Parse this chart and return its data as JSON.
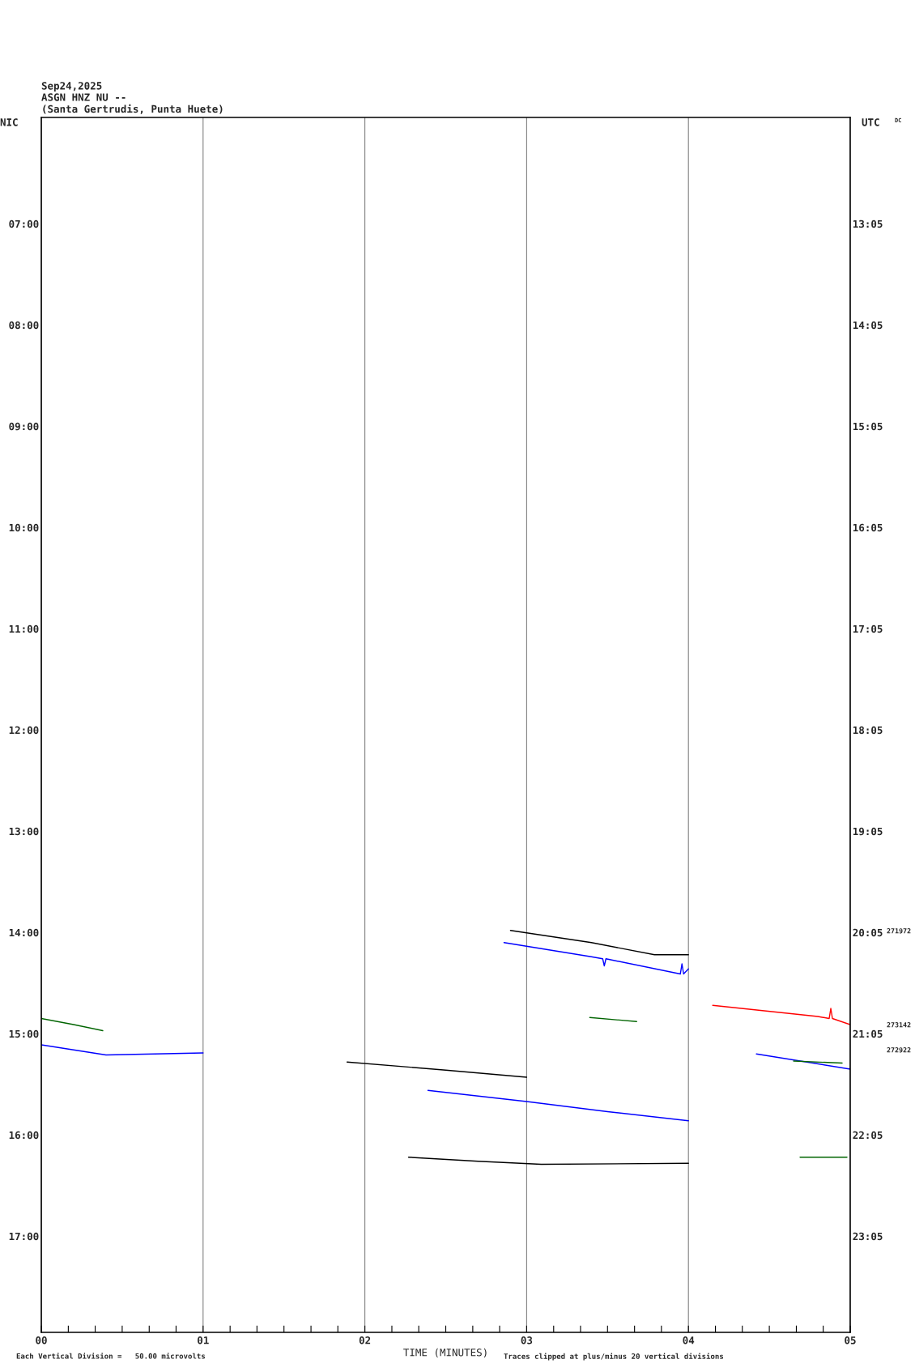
{
  "chart_data": {
    "type": "line",
    "title": "Sep24,2025",
    "subtitle": "ASGN HNZ NU --\n(Santa Gertrudis, Punta Huete)",
    "xlabel": "TIME (MINUTES)",
    "ylabel": "NIC",
    "y2label": "UTC",
    "xlim": [
      0,
      5
    ],
    "ylim": [
      17.95,
      5.95
    ],
    "y2lim": [
      24.033,
      12.033
    ],
    "xticks": [
      {
        "value": 0,
        "label": "00"
      },
      {
        "value": 0.167,
        "label": null
      },
      {
        "value": 0.333,
        "label": null
      },
      {
        "value": 0.5,
        "label": null
      },
      {
        "value": 0.667,
        "label": null
      },
      {
        "value": 0.833,
        "label": null
      },
      {
        "value": 1,
        "label": "01"
      },
      {
        "value": 1.167,
        "label": null
      },
      {
        "value": 1.333,
        "label": null
      },
      {
        "value": 1.5,
        "label": null
      },
      {
        "value": 1.667,
        "label": null
      },
      {
        "value": 1.833,
        "label": null
      },
      {
        "value": 2,
        "label": "02"
      },
      {
        "value": 2.167,
        "label": null
      },
      {
        "value": 2.333,
        "label": null
      },
      {
        "value": 2.5,
        "label": null
      },
      {
        "value": 2.667,
        "label": null
      },
      {
        "value": 2.833,
        "label": null
      },
      {
        "value": 3,
        "label": "03"
      },
      {
        "value": 3.167,
        "label": null
      },
      {
        "value": 3.333,
        "label": null
      },
      {
        "value": 3.5,
        "label": null
      },
      {
        "value": 3.667,
        "label": null
      },
      {
        "value": 3.833,
        "label": null
      },
      {
        "value": 4,
        "label": "04"
      },
      {
        "value": 4.167,
        "label": null
      },
      {
        "value": 4.333,
        "label": null
      },
      {
        "value": 4.5,
        "label": null
      },
      {
        "value": 4.667,
        "label": null
      },
      {
        "value": 4.833,
        "label": null
      },
      {
        "value": 5,
        "label": "05"
      }
    ],
    "yticks": [
      {
        "value": 7,
        "label": "07:00"
      },
      {
        "value": 8,
        "label": "08:00"
      },
      {
        "value": 9,
        "label": "09:00"
      },
      {
        "value": 10,
        "label": "10:00"
      },
      {
        "value": 11,
        "label": "11:00"
      },
      {
        "value": 12,
        "label": "12:00"
      },
      {
        "value": 13,
        "label": "13:00"
      },
      {
        "value": 14,
        "label": "14:00"
      },
      {
        "value": 15,
        "label": "15:00"
      },
      {
        "value": 16,
        "label": "16:00"
      },
      {
        "value": 17,
        "label": "17:00"
      }
    ],
    "y2ticks": [
      {
        "value": 13.083,
        "label": "13:05"
      },
      {
        "value": 14.083,
        "label": "14:05"
      },
      {
        "value": 15.083,
        "label": "15:05"
      },
      {
        "value": 16.083,
        "label": "16:05"
      },
      {
        "value": 17.083,
        "label": "17:05"
      },
      {
        "value": 18.083,
        "label": "18:05"
      },
      {
        "value": 19.083,
        "label": "19:05"
      },
      {
        "value": 20.083,
        "label": "20:05"
      },
      {
        "value": 21.083,
        "label": "21:05"
      },
      {
        "value": 22.083,
        "label": "22:05"
      },
      {
        "value": 23.083,
        "label": "23:05"
      }
    ],
    "grid": "x",
    "legend": false,
    "series": [
      {
        "color": "#006400",
        "x": [
          0,
          0.2,
          0.38
        ],
        "values": [
          14.85,
          14.91,
          14.97
        ]
      },
      {
        "color": "#0000ff",
        "x": [
          0,
          0.2,
          0.4,
          1.0
        ],
        "values": [
          15.11,
          15.16,
          15.21,
          15.19
        ]
      },
      {
        "color": "#000000",
        "x": [
          1.89,
          2.5,
          3.0
        ],
        "values": [
          15.28,
          15.36,
          15.43
        ]
      },
      {
        "color": "#0000ff",
        "x": [
          2.39,
          3.0,
          3.5,
          4.0
        ],
        "values": [
          15.56,
          15.67,
          15.77,
          15.86
        ]
      },
      {
        "color": "#000000",
        "x": [
          2.27,
          2.7,
          3.09,
          4.0
        ],
        "values": [
          16.22,
          16.26,
          16.29,
          16.28
        ]
      },
      {
        "color": "#000000",
        "x": [
          2.9,
          3.4,
          3.79,
          4.0
        ],
        "values": [
          13.98,
          14.1,
          14.22,
          14.22
        ]
      },
      {
        "color": "#0000ff",
        "x": [
          2.86,
          3.4,
          3.47,
          3.48,
          3.49,
          3.95,
          3.96,
          3.97,
          4.0
        ],
        "values": [
          14.1,
          14.24,
          14.26,
          14.33,
          14.26,
          14.41,
          14.31,
          14.41,
          14.36
        ]
      },
      {
        "color": "#006400",
        "x": [
          3.39,
          3.68
        ],
        "values": [
          14.84,
          14.88
        ]
      },
      {
        "color": "#ff0000",
        "x": [
          4.15,
          4.8,
          4.87,
          4.88,
          4.89,
          5.0
        ],
        "values": [
          14.72,
          14.83,
          14.85,
          14.75,
          14.85,
          14.91
        ]
      },
      {
        "color": "#0000ff",
        "x": [
          4.42,
          5.0
        ],
        "values": [
          15.2,
          15.35
        ]
      },
      {
        "color": "#006400",
        "x": [
          4.65,
          4.95
        ],
        "values": [
          15.27,
          15.29
        ]
      },
      {
        "color": "#006400",
        "x": [
          4.69,
          4.98
        ],
        "values": [
          16.22,
          16.22
        ]
      }
    ],
    "annotations": [
      "DC",
      "271972",
      "273142",
      "272922",
      "Each Vertical Division =   50.00 microvolts",
      "Traces clipped at plus/minus 20 vertical divisions"
    ]
  }
}
